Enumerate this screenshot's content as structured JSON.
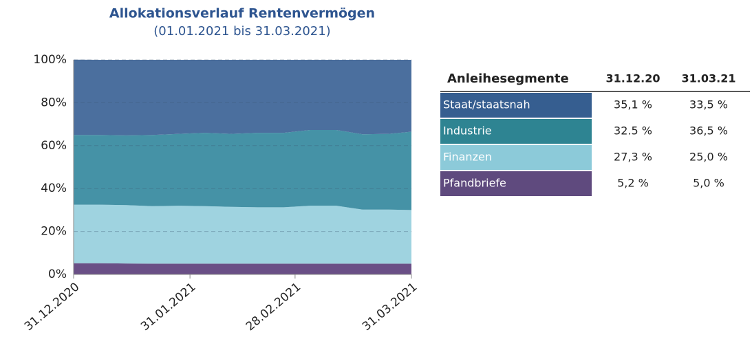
{
  "chart_data": {
    "type": "stacked_area",
    "title": "Allokationsverlauf Rentenvermögen",
    "subtitle": "(01.01.2021 bis 31.03.2021)",
    "x": [
      "31.12.2020",
      "07.01.2021",
      "14.01.2021",
      "21.01.2021",
      "28.01.2021",
      "04.02.2021",
      "11.02.2021",
      "18.02.2021",
      "25.02.2021",
      "04.03.2021",
      "11.03.2021",
      "18.03.2021",
      "25.03.2021",
      "31.03.2021"
    ],
    "xticks": [
      "31.12.2020",
      "31.01.2021",
      "28.02.2021",
      "31.03.2021"
    ],
    "series": [
      {
        "name": "Pfandbriefe",
        "color": "#6a4f86",
        "values": [
          5.2,
          5.2,
          5.1,
          5,
          5,
          5,
          5,
          5,
          5,
          5,
          5,
          5,
          5,
          5.0
        ]
      },
      {
        "name": "Finanzen",
        "color": "#9fd3e0",
        "values": [
          27.3,
          27.3,
          27.2,
          26.8,
          27,
          26.8,
          26.5,
          26.3,
          26.3,
          27,
          27,
          25.2,
          25.2,
          25.0
        ]
      },
      {
        "name": "Industrie",
        "color": "#4592a6",
        "values": [
          32.5,
          32.5,
          32.5,
          33.2,
          33.5,
          34.2,
          34,
          34.7,
          34.7,
          35.3,
          35.3,
          35.1,
          35.3,
          36.5
        ]
      },
      {
        "name": "Staat/staatsnah",
        "color": "#4b6f9e",
        "values": [
          35.1,
          35,
          35.2,
          35,
          34.5,
          34,
          34.5,
          34,
          34,
          32.7,
          32.7,
          34.7,
          34.5,
          33.5
        ]
      }
    ],
    "ylim": [
      0,
      100
    ],
    "yticks": [
      {
        "value": 0,
        "label": "0%"
      },
      {
        "value": 20,
        "label": "20%"
      },
      {
        "value": 40,
        "label": "40%"
      },
      {
        "value": 60,
        "label": "60%"
      },
      {
        "value": 80,
        "label": "80%"
      },
      {
        "value": 100,
        "label": "100%"
      }
    ],
    "grid": true
  },
  "table": {
    "header": [
      "Anleihesegmente",
      "31.12.20",
      "31.03.21"
    ],
    "rows": [
      [
        "Staat/staatsnah",
        "35,1 %",
        "33,5 %"
      ],
      [
        "Industrie",
        "32.5 %",
        "36,5 %"
      ],
      [
        "Finanzen",
        "27,3 %",
        "25,0 %"
      ],
      [
        "Pfandbriefe",
        "5,2 %",
        "5,0 %"
      ]
    ],
    "row_colors": [
      "#365e90",
      "#2e8492",
      "#8ccad9",
      "#5f4a7e"
    ]
  }
}
